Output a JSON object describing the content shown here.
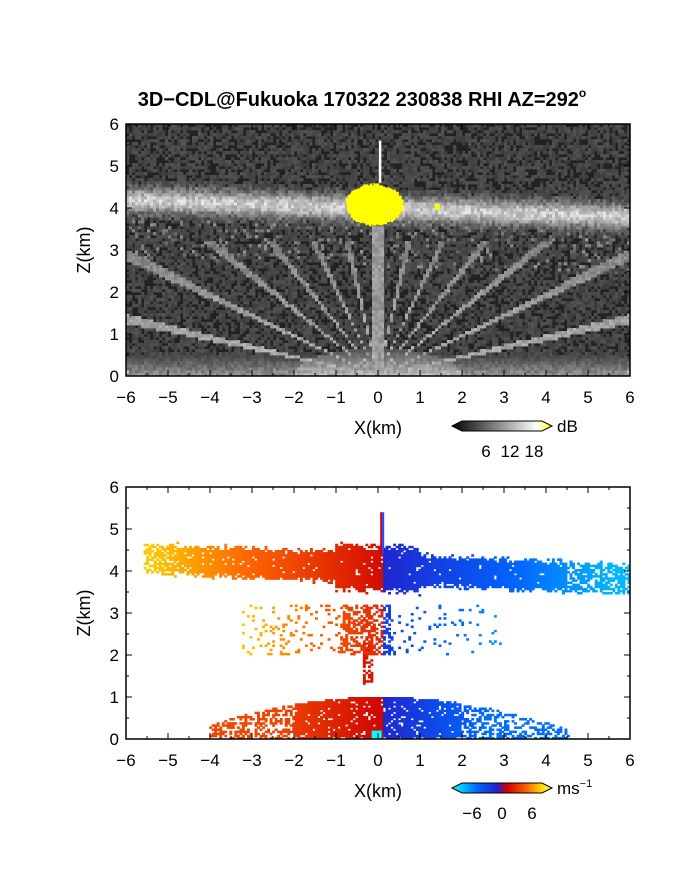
{
  "figure": {
    "title": "3D−CDL@Fukuoka 170322 230838 RHI AZ=292",
    "title_degree": "o"
  },
  "chart_data": [
    {
      "type": "heatmap",
      "name": "reflectivity",
      "title": "3D−CDL@Fukuoka 170322 230838 RHI AZ=292°",
      "xlabel": "X(km)",
      "ylabel": "Z(km)",
      "xlim": [
        -6,
        6
      ],
      "ylim": [
        0,
        6
      ],
      "x_ticks": [
        "−6",
        "−5",
        "−4",
        "−3",
        "−2",
        "−1",
        "0",
        "1",
        "2",
        "3",
        "4",
        "5",
        "6"
      ],
      "y_ticks": [
        "0",
        "1",
        "2",
        "3",
        "4",
        "5",
        "6"
      ],
      "colorbar": {
        "unit": "dB",
        "ticks": [
          "6",
          "12",
          "18"
        ],
        "tick_values": [
          6,
          12,
          18
        ],
        "range": [
          0,
          20
        ],
        "colors": [
          "#000000",
          "#ffffff",
          "#ffff00"
        ]
      },
      "background_color": "#222222",
      "features": [
        {
          "feature": "cloud-layer",
          "x": [
            -6,
            6
          ],
          "z_center_left": 4.2,
          "z_center_right": 3.8,
          "thickness": 0.6,
          "intensity": 12
        },
        {
          "feature": "saturated-core",
          "x": [
            -0.8,
            0.6
          ],
          "z": [
            3.6,
            4.6
          ],
          "color": "#ffff00"
        },
        {
          "feature": "vertical-spike",
          "x": 0.05,
          "z": [
            4.6,
            5.6
          ]
        },
        {
          "feature": "radial-streaks",
          "origin_x": 0,
          "z": [
            0,
            3.2
          ]
        },
        {
          "feature": "ground-clutter",
          "x": [
            -6,
            6
          ],
          "z": [
            0,
            0.8
          ],
          "intensity": 10
        }
      ]
    },
    {
      "type": "heatmap",
      "name": "doppler-velocity",
      "xlabel": "X(km)",
      "ylabel": "Z(km)",
      "xlim": [
        -6,
        6
      ],
      "ylim": [
        0,
        6
      ],
      "x_ticks": [
        "−6",
        "−5",
        "−4",
        "−3",
        "−2",
        "−1",
        "0",
        "1",
        "2",
        "3",
        "4",
        "5",
        "6"
      ],
      "y_ticks": [
        "0",
        "1",
        "2",
        "3",
        "4",
        "5",
        "6"
      ],
      "colorbar": {
        "unit": "ms",
        "unit_exponent": "−1",
        "ticks": [
          "−6",
          "0",
          "6"
        ],
        "tick_values": [
          -6,
          0,
          6
        ],
        "range": [
          -8,
          8
        ],
        "colors": [
          "#00ffff",
          "#0066ff",
          "#2222cc",
          "#cc0000",
          "#ff6600",
          "#ffdd00",
          "#ffff55"
        ]
      },
      "features": [
        {
          "feature": "upper-layer",
          "x": [
            -5.6,
            6.0
          ],
          "z_center_left": 4.3,
          "z_center_right": 3.8,
          "thickness": 0.7,
          "velocity_left": 6,
          "velocity_right": -6
        },
        {
          "feature": "mid-layer",
          "x": [
            -3.3,
            3.0
          ],
          "z": [
            2.0,
            3.2
          ],
          "velocity_left": 5,
          "velocity_right": -5
        },
        {
          "feature": "low-layer",
          "x": [
            -4.0,
            4.6
          ],
          "z": [
            0,
            1.0
          ],
          "velocity_left": 3,
          "velocity_right": -3
        },
        {
          "feature": "vertical-spike",
          "x": 0.1,
          "z": [
            4.4,
            5.4
          ]
        }
      ]
    }
  ]
}
